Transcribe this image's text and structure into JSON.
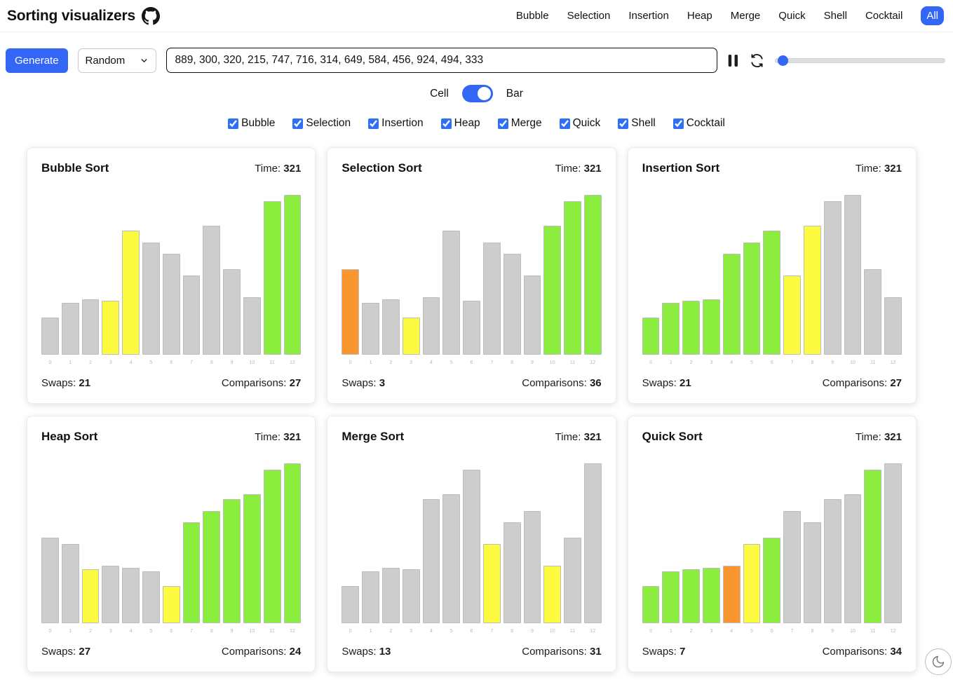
{
  "header": {
    "title": "Sorting visualizers",
    "nav": [
      "Bubble",
      "Selection",
      "Insertion",
      "Heap",
      "Merge",
      "Quick",
      "Shell",
      "Cocktail"
    ],
    "all_label": "All"
  },
  "toolbar": {
    "generate_label": "Generate",
    "mode_selected": "Random",
    "array_input": "889, 300, 320, 215, 747, 716, 314, 649, 584, 456, 924, 494, 333",
    "pause_icon": "pause-icon",
    "refresh_icon": "refresh-icon",
    "speed_slider_percent": 2
  },
  "view_toggle": {
    "left_label": "Cell",
    "right_label": "Bar",
    "selected": "Bar"
  },
  "filters": [
    {
      "label": "Bubble",
      "checked": true
    },
    {
      "label": "Selection",
      "checked": true
    },
    {
      "label": "Insertion",
      "checked": true
    },
    {
      "label": "Heap",
      "checked": true
    },
    {
      "label": "Merge",
      "checked": true
    },
    {
      "label": "Quick",
      "checked": true
    },
    {
      "label": "Shell",
      "checked": true
    },
    {
      "label": "Cocktail",
      "checked": true
    }
  ],
  "stats_labels": {
    "time": "Time:",
    "swaps": "Swaps:",
    "comparisons": "Comparisons:"
  },
  "colors": {
    "accent": "#3366f5",
    "bar_gray": "#cdcdcd",
    "bar_green": "#8bee3f",
    "bar_yellow": "#fdfa42",
    "bar_orange": "#f9962f",
    "bar_border": "#bcbcbc"
  },
  "chart_data": [
    {
      "type": "bar",
      "title": "Bubble Sort",
      "time": "321",
      "swaps": "21",
      "comparisons": "27",
      "categories": [
        "0",
        "1",
        "2",
        "3",
        "4",
        "5",
        "6",
        "7",
        "8",
        "9",
        "10",
        "11",
        "12"
      ],
      "values": [
        215,
        300,
        320,
        314,
        716,
        649,
        584,
        456,
        747,
        494,
        333,
        889,
        924
      ],
      "bar_colors": [
        "gray",
        "gray",
        "gray",
        "yellow",
        "yellow",
        "gray",
        "gray",
        "gray",
        "gray",
        "gray",
        "gray",
        "green",
        "green"
      ],
      "ylim": [
        0,
        924
      ]
    },
    {
      "type": "bar",
      "title": "Selection Sort",
      "time": "321",
      "swaps": "3",
      "comparisons": "36",
      "categories": [
        "0",
        "1",
        "2",
        "3",
        "4",
        "5",
        "6",
        "7",
        "8",
        "9",
        "10",
        "11",
        "12"
      ],
      "values": [
        494,
        300,
        320,
        215,
        333,
        716,
        314,
        649,
        584,
        456,
        747,
        889,
        924
      ],
      "bar_colors": [
        "orange",
        "gray",
        "gray",
        "yellow",
        "gray",
        "gray",
        "gray",
        "gray",
        "gray",
        "gray",
        "green",
        "green",
        "green"
      ],
      "ylim": [
        0,
        924
      ]
    },
    {
      "type": "bar",
      "title": "Insertion Sort",
      "time": "321",
      "swaps": "21",
      "comparisons": "27",
      "categories": [
        "0",
        "1",
        "2",
        "3",
        "4",
        "5",
        "6",
        "7",
        "8",
        "9",
        "10",
        "11",
        "12"
      ],
      "values": [
        215,
        300,
        314,
        320,
        584,
        649,
        716,
        456,
        747,
        889,
        924,
        494,
        333
      ],
      "bar_colors": [
        "green",
        "green",
        "green",
        "green",
        "green",
        "green",
        "green",
        "yellow",
        "yellow",
        "gray",
        "gray",
        "gray",
        "gray"
      ],
      "ylim": [
        0,
        924
      ]
    },
    {
      "type": "bar",
      "title": "Heap Sort",
      "time": "321",
      "swaps": "27",
      "comparisons": "24",
      "categories": [
        "0",
        "1",
        "2",
        "3",
        "4",
        "5",
        "6",
        "7",
        "8",
        "9",
        "10",
        "11",
        "12"
      ],
      "values": [
        494,
        456,
        314,
        333,
        320,
        300,
        215,
        584,
        649,
        716,
        747,
        889,
        924
      ],
      "bar_colors": [
        "gray",
        "gray",
        "yellow",
        "gray",
        "gray",
        "gray",
        "yellow",
        "green",
        "green",
        "green",
        "green",
        "green",
        "green"
      ],
      "ylim": [
        0,
        924
      ]
    },
    {
      "type": "bar",
      "title": "Merge Sort",
      "time": "321",
      "swaps": "13",
      "comparisons": "31",
      "categories": [
        "0",
        "1",
        "2",
        "3",
        "4",
        "5",
        "6",
        "7",
        "8",
        "9",
        "10",
        "11",
        "12"
      ],
      "values": [
        215,
        300,
        320,
        314,
        716,
        747,
        889,
        456,
        584,
        649,
        333,
        494,
        924
      ],
      "bar_colors": [
        "gray",
        "gray",
        "gray",
        "gray",
        "gray",
        "gray",
        "gray",
        "yellow",
        "gray",
        "gray",
        "yellow",
        "gray",
        "gray"
      ],
      "ylim": [
        0,
        924
      ]
    },
    {
      "type": "bar",
      "title": "Quick Sort",
      "time": "321",
      "swaps": "7",
      "comparisons": "34",
      "categories": [
        "0",
        "1",
        "2",
        "3",
        "4",
        "5",
        "6",
        "7",
        "8",
        "9",
        "10",
        "11",
        "12"
      ],
      "values": [
        215,
        300,
        314,
        320,
        333,
        456,
        494,
        649,
        584,
        716,
        747,
        889,
        924
      ],
      "bar_colors": [
        "green",
        "green",
        "green",
        "green",
        "orange",
        "yellow",
        "green",
        "gray",
        "gray",
        "gray",
        "gray",
        "green",
        "gray"
      ],
      "ylim": [
        0,
        924
      ]
    }
  ],
  "theme_toggle": {
    "icon": "moon-icon"
  }
}
